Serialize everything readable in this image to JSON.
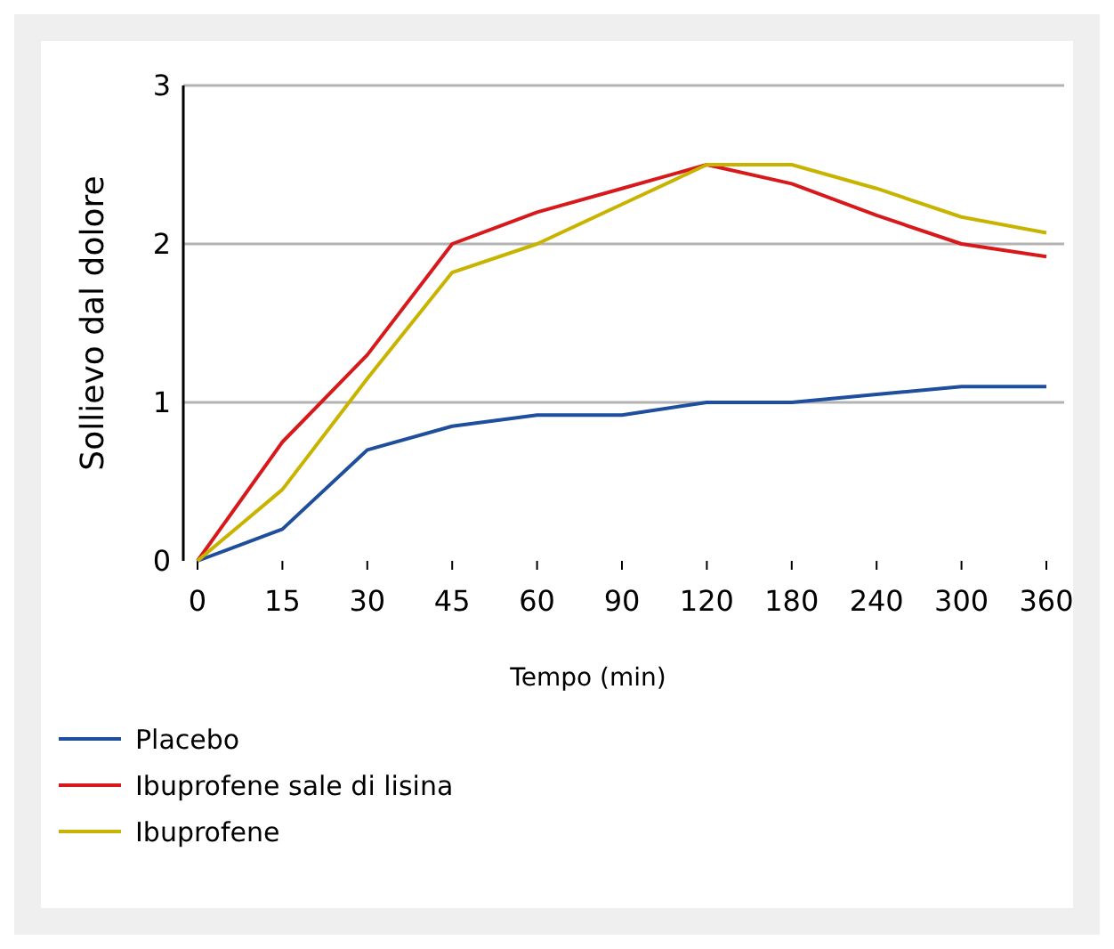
{
  "chart_data": {
    "type": "line",
    "xlabel": "Tempo (min)",
    "ylabel": "Sollievo dal dolore",
    "categories": [
      "0",
      "15",
      "30",
      "45",
      "60",
      "90",
      "120",
      "180",
      "240",
      "300",
      "360"
    ],
    "series": [
      {
        "name": "Placebo",
        "color": "#1f4e9c",
        "values": [
          0,
          0.2,
          0.7,
          0.85,
          0.92,
          0.92,
          1.0,
          1.0,
          1.05,
          1.1,
          1.1
        ]
      },
      {
        "name": "Ibuprofene sale di lisina",
        "color": "#d7191c",
        "values": [
          0,
          0.75,
          1.3,
          2.0,
          2.2,
          2.35,
          2.5,
          2.38,
          2.18,
          2.0,
          1.92
        ]
      },
      {
        "name": "Ibuprofene",
        "color": "#c8b400",
        "values": [
          0,
          0.45,
          1.15,
          1.82,
          2.0,
          2.25,
          2.5,
          2.5,
          2.35,
          2.17,
          2.07
        ]
      }
    ],
    "ylim": [
      0,
      3
    ],
    "yticks": [
      0,
      1,
      2,
      3
    ],
    "grid": "y",
    "legend": "bottom",
    "line_style": "solid"
  }
}
